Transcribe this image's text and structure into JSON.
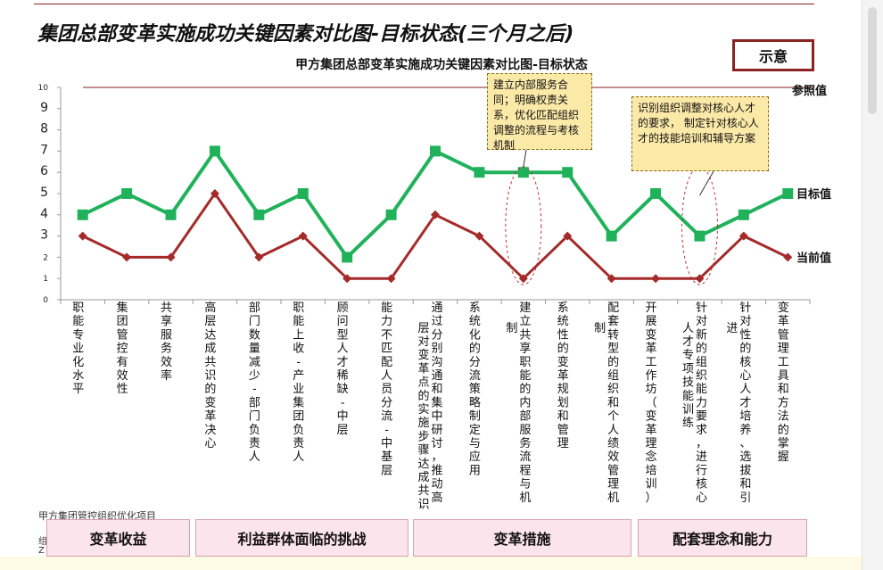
{
  "header": {
    "title": "集团总部变革实施成功关键因素对比图-目标状态(三个月之后)",
    "badge": "示意"
  },
  "chart_data": {
    "type": "line",
    "title": "甲方集团总部变革实施成功关键因素对比图-目标状态",
    "ylim": [
      0,
      10
    ],
    "yticks": [
      "0",
      "1",
      "2",
      "3",
      "4",
      "5",
      "6",
      "7",
      "8",
      "9",
      "10"
    ],
    "categories": [
      "职能专业化水平",
      "集团管控有效性",
      "共享服务效率",
      "高层达成共识的变革决心",
      "部门数量减少-部门负责人",
      "职能上收-产业集团负责人",
      "顾问型人才稀缺-中层",
      "能力不匹配人员分流-中基层",
      "通过分别沟通和集中研讨，推动高层对变革点的实施步骤达成共识",
      "系统化的分流策略制定与应用",
      "建立共享职能的内部服务流程与机制",
      "系统性的变革规划和管理",
      "配套转型的组织和个人绩效管理机制",
      "开展变革工作坊（变革理念培训）",
      "针对新的组织能力要求，进行核心人才专项技能训练",
      "针对性的核心人才培养、选拔和引进",
      "变革管理工具和方法的掌握"
    ],
    "series": [
      {
        "name": "目标值",
        "color": "#1fb25a",
        "values": [
          4,
          5,
          4,
          7,
          4,
          5,
          2,
          4,
          7,
          6,
          6,
          6,
          3,
          5,
          3,
          4,
          5
        ]
      },
      {
        "name": "当前值",
        "color": "#a52a2a",
        "values": [
          3,
          2,
          2,
          5,
          2,
          3,
          1,
          1,
          4,
          3,
          1,
          3,
          1,
          1,
          1,
          3,
          2
        ]
      }
    ],
    "reference": {
      "name": "参照值",
      "value": 10,
      "color": "#8a1e1e"
    }
  },
  "callouts": [
    "建立内部服务合同；明确权责关系，优化匹配组织调整的流程与考核机制",
    "识别组织调整对核心人才的要求，  制定针对核心人才的技能培训和辅导方案"
  ],
  "footer": {
    "note": "甲方集团管控组织优化项目",
    "clipped_1": "组",
    "clipped_2": "Z",
    "groups": [
      "变革收益",
      "利益群体面临的挑战",
      "变革措施",
      "配套理念和能力"
    ]
  }
}
